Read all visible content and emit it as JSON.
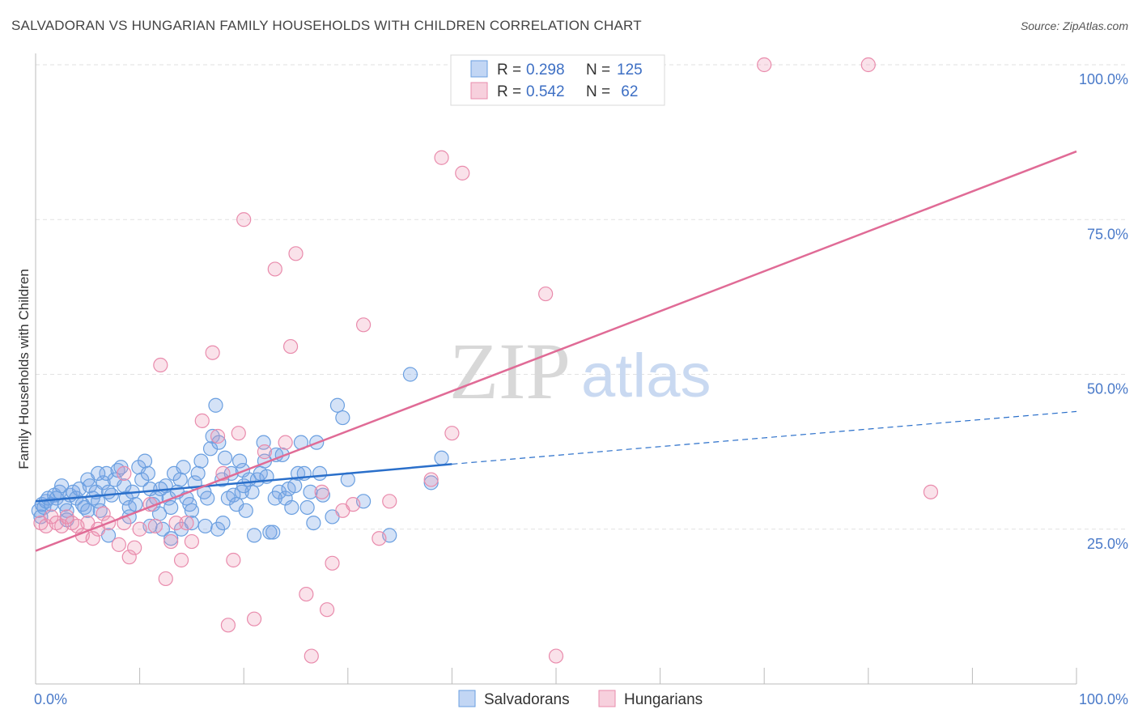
{
  "chart_data": {
    "type": "scatter",
    "title": "SALVADORAN VS HUNGARIAN FAMILY HOUSEHOLDS WITH CHILDREN CORRELATION CHART",
    "source": "Source: ZipAtlas.com",
    "ylabel": "Family Households with Children",
    "xlim": [
      0,
      100
    ],
    "ylim": [
      0,
      102
    ],
    "y_ticks": [
      {
        "value": 25,
        "label": "25.0%"
      },
      {
        "value": 50,
        "label": "50.0%"
      },
      {
        "value": 75,
        "label": "75.0%"
      },
      {
        "value": 100,
        "label": "100.0%"
      }
    ],
    "x_tick_labels": {
      "left": "0.0%",
      "right": "100.0%"
    },
    "watermark": {
      "zip": "ZIP",
      "atlas": "atlas"
    },
    "legend": [
      {
        "r_label": "R = ",
        "r_value": "0.298",
        "n_label": "N = ",
        "n_value": "125"
      },
      {
        "r_label": "R = ",
        "r_value": "0.542",
        "n_label": "N = ",
        "n_value": " 62"
      }
    ],
    "series": [
      {
        "name": "Salvadorans",
        "color": "#6a9fe0",
        "fill": "rgba(120,165,230,0.32)",
        "line_color": "#2a6fca",
        "trend": {
          "x0": 0,
          "y0": 29.5,
          "x1": 40,
          "y1": 35.5,
          "dash_x1": 100,
          "dash_y1": 44
        },
        "points": [
          [
            0.3,
            28
          ],
          [
            0.5,
            27
          ],
          [
            0.6,
            29
          ],
          [
            0.8,
            28.5
          ],
          [
            1.0,
            29.5
          ],
          [
            1.2,
            30
          ],
          [
            1.5,
            29
          ],
          [
            1.8,
            30.5
          ],
          [
            2.0,
            30
          ],
          [
            2.3,
            31
          ],
          [
            2.5,
            32
          ],
          [
            2.8,
            29
          ],
          [
            3.0,
            28
          ],
          [
            3.3,
            30.5
          ],
          [
            3.6,
            31
          ],
          [
            3.9,
            30
          ],
          [
            4.2,
            31.5
          ],
          [
            4.5,
            29
          ],
          [
            4.7,
            28.5
          ],
          [
            5.0,
            33
          ],
          [
            5.2,
            32
          ],
          [
            5.5,
            30
          ],
          [
            5.8,
            31
          ],
          [
            6.0,
            29.5
          ],
          [
            6.2,
            28
          ],
          [
            6.5,
            32.5
          ],
          [
            6.8,
            34
          ],
          [
            7.0,
            31
          ],
          [
            7.3,
            30.5
          ],
          [
            7.6,
            33
          ],
          [
            7.9,
            34.5
          ],
          [
            8.2,
            35
          ],
          [
            8.5,
            32
          ],
          [
            8.7,
            30
          ],
          [
            9.0,
            28.5
          ],
          [
            9.3,
            31
          ],
          [
            9.6,
            29
          ],
          [
            9.9,
            35
          ],
          [
            10.2,
            33
          ],
          [
            10.5,
            36
          ],
          [
            10.8,
            34
          ],
          [
            11.0,
            31.5
          ],
          [
            11.3,
            29
          ],
          [
            11.6,
            30
          ],
          [
            11.9,
            27.5
          ],
          [
            12.2,
            25
          ],
          [
            12.5,
            32
          ],
          [
            12.8,
            30
          ],
          [
            13.0,
            28.5
          ],
          [
            13.3,
            34
          ],
          [
            13.6,
            31
          ],
          [
            13.9,
            33
          ],
          [
            14.2,
            35
          ],
          [
            14.5,
            30
          ],
          [
            14.8,
            29
          ],
          [
            15.0,
            28
          ],
          [
            15.3,
            32.5
          ],
          [
            15.6,
            34
          ],
          [
            15.9,
            36
          ],
          [
            16.2,
            31
          ],
          [
            16.5,
            30
          ],
          [
            16.8,
            38
          ],
          [
            17.0,
            40
          ],
          [
            17.3,
            45
          ],
          [
            17.6,
            39
          ],
          [
            17.9,
            33
          ],
          [
            18.2,
            36.5
          ],
          [
            18.5,
            30
          ],
          [
            18.8,
            34
          ],
          [
            19.0,
            30.5
          ],
          [
            19.3,
            29
          ],
          [
            19.6,
            36
          ],
          [
            19.9,
            34.5
          ],
          [
            20.2,
            28
          ],
          [
            20.5,
            33
          ],
          [
            20.8,
            31
          ],
          [
            21.0,
            24
          ],
          [
            21.3,
            33
          ],
          [
            21.6,
            34
          ],
          [
            21.9,
            39
          ],
          [
            22.2,
            33.5
          ],
          [
            22.5,
            24.5
          ],
          [
            22.8,
            24.5
          ],
          [
            23.1,
            37
          ],
          [
            23.4,
            31
          ],
          [
            23.7,
            37
          ],
          [
            24.0,
            30
          ],
          [
            24.3,
            31.5
          ],
          [
            24.6,
            28.5
          ],
          [
            24.9,
            32
          ],
          [
            25.2,
            34
          ],
          [
            25.5,
            39
          ],
          [
            25.8,
            34
          ],
          [
            26.1,
            28.5
          ],
          [
            26.4,
            31
          ],
          [
            26.7,
            26
          ],
          [
            27.0,
            39
          ],
          [
            27.3,
            34
          ],
          [
            27.6,
            30.5
          ],
          [
            28.5,
            27
          ],
          [
            29.0,
            45
          ],
          [
            29.5,
            43
          ],
          [
            30.0,
            33
          ],
          [
            31.5,
            29.5
          ],
          [
            34.0,
            24
          ],
          [
            36.0,
            50
          ],
          [
            38.0,
            32.5
          ],
          [
            39.0,
            36.5
          ],
          [
            16.3,
            25.5
          ],
          [
            17.5,
            25
          ],
          [
            13.0,
            23.5
          ],
          [
            14.0,
            25
          ],
          [
            19.8,
            31
          ],
          [
            7.0,
            24
          ],
          [
            9.0,
            27
          ],
          [
            5.0,
            28
          ],
          [
            3.0,
            26.5
          ],
          [
            11.0,
            25.5
          ],
          [
            15.0,
            26
          ],
          [
            20.0,
            32
          ],
          [
            22.0,
            36
          ],
          [
            23.0,
            30
          ],
          [
            12.0,
            31.5
          ],
          [
            6.0,
            34
          ],
          [
            18.0,
            26
          ]
        ]
      },
      {
        "name": "Hungarians",
        "color": "#e98bac",
        "fill": "rgba(238,150,180,0.28)",
        "line_color": "#e06b96",
        "trend": {
          "x0": 0,
          "y0": 21.5,
          "x1": 100,
          "y1": 86
        },
        "points": [
          [
            0.5,
            26
          ],
          [
            1.0,
            25.5
          ],
          [
            1.5,
            27
          ],
          [
            2.0,
            26
          ],
          [
            2.5,
            25.5
          ],
          [
            3.0,
            27
          ],
          [
            3.5,
            26
          ],
          [
            4.0,
            25.5
          ],
          [
            4.5,
            24
          ],
          [
            5.0,
            26
          ],
          [
            5.5,
            23.5
          ],
          [
            6.0,
            25
          ],
          [
            6.5,
            27.5
          ],
          [
            7.0,
            26
          ],
          [
            8.0,
            22.5
          ],
          [
            8.5,
            26
          ],
          [
            9.0,
            20.5
          ],
          [
            9.5,
            22
          ],
          [
            10.0,
            25
          ],
          [
            11.0,
            29
          ],
          [
            11.5,
            25.5
          ],
          [
            12.0,
            51.5
          ],
          [
            12.5,
            17
          ],
          [
            13.0,
            23
          ],
          [
            13.5,
            26
          ],
          [
            14.0,
            20
          ],
          [
            14.5,
            26
          ],
          [
            15.0,
            23
          ],
          [
            16.0,
            42.5
          ],
          [
            17.0,
            53.5
          ],
          [
            17.5,
            40
          ],
          [
            18.0,
            34
          ],
          [
            18.5,
            9.5
          ],
          [
            19.0,
            20
          ],
          [
            19.5,
            40.5
          ],
          [
            20.0,
            75
          ],
          [
            21.0,
            10.5
          ],
          [
            22.0,
            37.5
          ],
          [
            23.0,
            67
          ],
          [
            24.0,
            39
          ],
          [
            24.5,
            54.5
          ],
          [
            25.0,
            69.5
          ],
          [
            26.0,
            14.5
          ],
          [
            26.5,
            4.5
          ],
          [
            27.5,
            31
          ],
          [
            28.0,
            12
          ],
          [
            28.5,
            19.5
          ],
          [
            29.5,
            28
          ],
          [
            30.5,
            29
          ],
          [
            31.5,
            58
          ],
          [
            33.0,
            23.5
          ],
          [
            34.0,
            29.5
          ],
          [
            38.0,
            33
          ],
          [
            39.0,
            85
          ],
          [
            40.0,
            40.5
          ],
          [
            41.0,
            82.5
          ],
          [
            49.0,
            63
          ],
          [
            50.0,
            4.5
          ],
          [
            70.0,
            100
          ],
          [
            80.0,
            100
          ],
          [
            86.0,
            31
          ],
          [
            8.5,
            34
          ]
        ]
      }
    ]
  }
}
